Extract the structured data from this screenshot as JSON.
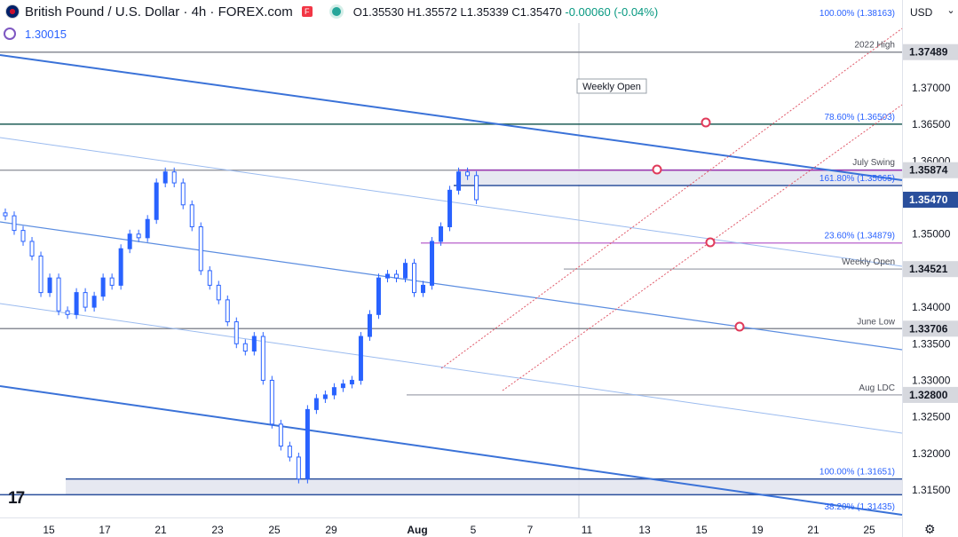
{
  "header": {
    "title": "British Pound / U.S. Dollar · 4h · FOREX.com",
    "open": "O1.35530",
    "high": "H1.35572",
    "low": "L1.35339",
    "close": "C1.35470",
    "change": "-0.00060 (-0.04%)"
  },
  "indicator": {
    "value": "1.30015"
  },
  "currency_selector": {
    "label": "USD"
  },
  "logo": {
    "text": "17"
  },
  "colors": {
    "up": "#2962ff",
    "down": "#2962ff",
    "channel": "#3a72d8",
    "fib": "#1f5e57",
    "accent_pink": "#c37ad3",
    "marker": "#e03a5a"
  },
  "chart_data": {
    "type": "candlestick",
    "symbol": "GBPUSD",
    "timeframe": "4h",
    "y_ticks": [
      "1.37000",
      "1.36500",
      "1.36000",
      "1.35500",
      "1.35000",
      "1.34500",
      "1.34000",
      "1.33500",
      "1.33000",
      "1.32500",
      "1.32000",
      "1.31500"
    ],
    "x_ticks": [
      "15",
      "17",
      "21",
      "23",
      "25",
      "29",
      "Aug",
      "5",
      "7",
      "11",
      "13",
      "15",
      "19",
      "21",
      "25"
    ],
    "ylim": [
      1.3125,
      1.3825
    ],
    "price_labels": [
      {
        "value": 1.37489,
        "text": "1.37489",
        "style": "gray"
      },
      {
        "value": 1.35874,
        "text": "1.35874",
        "style": "gray"
      },
      {
        "value": 1.3547,
        "text": "1.35470",
        "style": "current"
      },
      {
        "value": 1.34521,
        "text": "1.34521",
        "style": "gray"
      },
      {
        "value": 1.33706,
        "text": "1.33706",
        "style": "gray"
      },
      {
        "value": 1.328,
        "text": "1.32800",
        "style": "gray"
      }
    ],
    "levels": [
      {
        "value": 1.37489,
        "label": "2022 High"
      },
      {
        "value": 1.36503,
        "label": "78.60% (1.36503)"
      },
      {
        "value": 1.35874,
        "label": "July Swing"
      },
      {
        "value": 1.35665,
        "label": "161.80% (1.35665)"
      },
      {
        "value": 1.34879,
        "label": "23.60% (1.34879)"
      },
      {
        "value": 1.34521,
        "label": "Weekly Open"
      },
      {
        "value": 1.33706,
        "label": "June Low"
      },
      {
        "value": 1.328,
        "label": "Aug LDC"
      },
      {
        "value": 1.31651,
        "label": "100.00% (1.31651)"
      },
      {
        "value": 1.31435,
        "label": "38.20% (1.31435)"
      },
      {
        "value": 1.38163,
        "label": "100.00% (1.38163)"
      }
    ],
    "annotation": "Weekly Open",
    "close_series": [
      1.3525,
      1.3505,
      1.349,
      1.347,
      1.342,
      1.344,
      1.3395,
      1.339,
      1.342,
      1.34,
      1.3415,
      1.344,
      1.343,
      1.348,
      1.35,
      1.3495,
      1.352,
      1.357,
      1.3585,
      1.357,
      1.354,
      1.351,
      1.345,
      1.343,
      1.341,
      1.338,
      1.335,
      1.334,
      1.336,
      1.33,
      1.324,
      1.321,
      1.3195,
      1.3165,
      1.326,
      1.3275,
      1.328,
      1.329,
      1.3295,
      1.33,
      1.336,
      1.339,
      1.344,
      1.3445,
      1.344,
      1.346,
      1.342,
      1.343,
      1.349,
      1.351,
      1.356,
      1.3585,
      1.358,
      1.3547
    ]
  }
}
